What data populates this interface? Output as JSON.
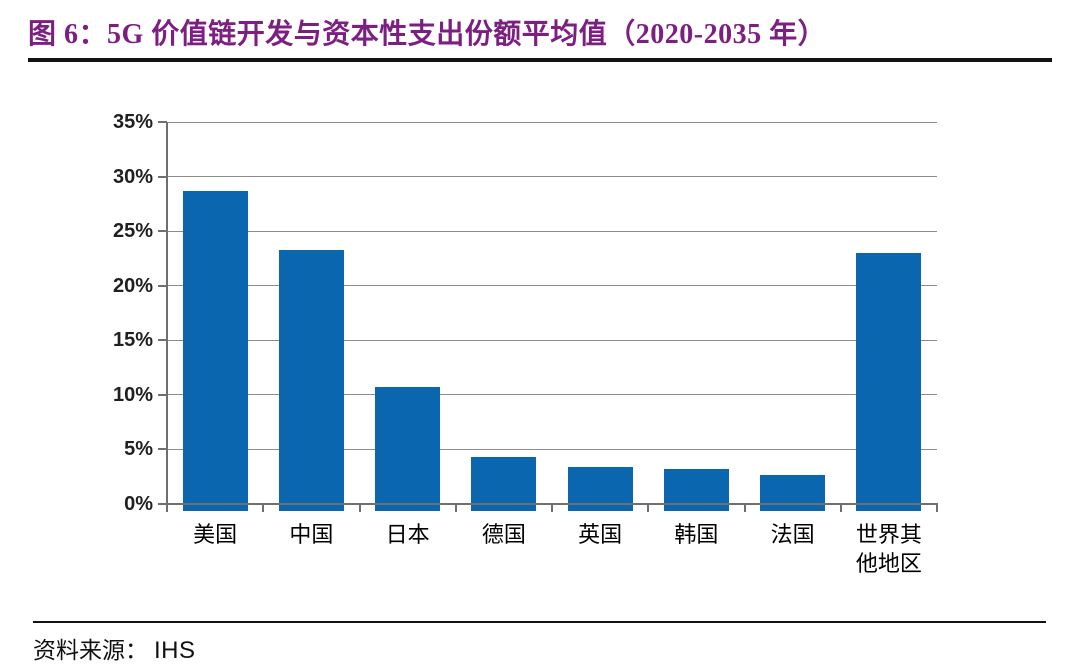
{
  "header": {
    "title": "图 6：5G 价值链开发与资本性支出份额平均值（2020-2035 年）"
  },
  "footer": {
    "source_label": "资料来源：",
    "source_value": "IHS"
  },
  "colors": {
    "title_purple": "#7D1F82",
    "rule_black": "#121212",
    "bar_blue": "#0A66AE",
    "gridline_gray": "#8C8C8C",
    "axis_gray": "#6F6F6F",
    "tick_label_color": "#1F1F1F"
  },
  "chart_data": {
    "type": "bar",
    "title": "5G 价值链开发与资本性支出份额平均值（2020-2035 年）",
    "categories": [
      "美国",
      "中国",
      "日本",
      "德国",
      "英国",
      "韩国",
      "法国",
      "世界其他地区"
    ],
    "values": [
      28.7,
      23.3,
      10.7,
      4.3,
      3.4,
      3.2,
      2.7,
      23.0
    ],
    "unit": "%",
    "xlabel": "",
    "ylabel": "",
    "ylim": [
      0,
      35
    ],
    "ytick_step": 5,
    "ytick_labels": [
      "0%",
      "5%",
      "10%",
      "15%",
      "20%",
      "25%",
      "30%",
      "35%"
    ],
    "grid": true,
    "legend": "none"
  }
}
